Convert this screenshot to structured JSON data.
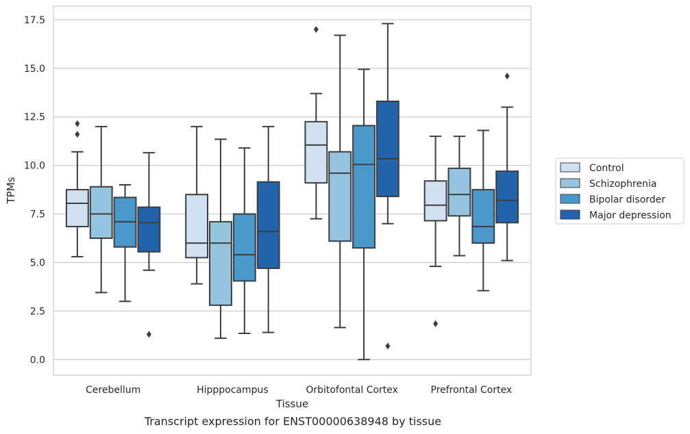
{
  "caption": "Transcript expression for ENST00000638948 by tissue",
  "chart_data": {
    "type": "box",
    "title": "",
    "xlabel": "Tissue",
    "ylabel": "TPMs",
    "ylim": [
      -0.8,
      18.2
    ],
    "yticks": [
      "0.0",
      "2.5",
      "5.0",
      "7.5",
      "10.0",
      "12.5",
      "15.0",
      "17.5"
    ],
    "grid": "horizontal",
    "legend_position": "right",
    "categories": [
      "Cerebellum",
      "Hipppocampus",
      "Orbitofontal Cortex",
      "Prefrontal Cortex"
    ],
    "series": [
      {
        "name": "Control",
        "color": "#d0e1f2",
        "boxes": [
          {
            "whisker_low": 5.3,
            "q1": 6.85,
            "median": 8.05,
            "q3": 8.75,
            "whisker_high": 10.7,
            "outliers": [
              12.15,
              11.6
            ]
          },
          {
            "whisker_low": 3.9,
            "q1": 5.25,
            "median": 6.0,
            "q3": 8.5,
            "whisker_high": 12.0,
            "outliers": []
          },
          {
            "whisker_low": 7.25,
            "q1": 9.1,
            "median": 11.05,
            "q3": 12.25,
            "whisker_high": 13.7,
            "outliers": [
              17.0
            ]
          },
          {
            "whisker_low": 4.8,
            "q1": 7.15,
            "median": 7.95,
            "q3": 9.2,
            "whisker_high": 11.5,
            "outliers": [
              1.85
            ]
          }
        ]
      },
      {
        "name": "Schizophrenia",
        "color": "#94c4df",
        "boxes": [
          {
            "whisker_low": 3.45,
            "q1": 6.25,
            "median": 7.5,
            "q3": 8.9,
            "whisker_high": 12.0,
            "outliers": []
          },
          {
            "whisker_low": 1.1,
            "q1": 2.8,
            "median": 6.0,
            "q3": 7.1,
            "whisker_high": 11.35,
            "outliers": []
          },
          {
            "whisker_low": 1.65,
            "q1": 6.1,
            "median": 9.6,
            "q3": 10.7,
            "whisker_high": 16.7,
            "outliers": []
          },
          {
            "whisker_low": 5.35,
            "q1": 7.4,
            "median": 8.5,
            "q3": 9.85,
            "whisker_high": 11.5,
            "outliers": []
          }
        ]
      },
      {
        "name": "Bipolar disorder",
        "color": "#4a98c9",
        "boxes": [
          {
            "whisker_low": 3.0,
            "q1": 5.8,
            "median": 7.1,
            "q3": 8.35,
            "whisker_high": 9.0,
            "outliers": []
          },
          {
            "whisker_low": 1.35,
            "q1": 4.05,
            "median": 5.4,
            "q3": 7.5,
            "whisker_high": 10.9,
            "outliers": []
          },
          {
            "whisker_low": 0.0,
            "q1": 5.75,
            "median": 10.05,
            "q3": 12.05,
            "whisker_high": 14.95,
            "outliers": []
          },
          {
            "whisker_low": 3.55,
            "q1": 6.0,
            "median": 6.85,
            "q3": 8.75,
            "whisker_high": 11.8,
            "outliers": []
          }
        ]
      },
      {
        "name": "Major depression",
        "color": "#2164ab",
        "boxes": [
          {
            "whisker_low": 4.6,
            "q1": 5.55,
            "median": 7.05,
            "q3": 7.85,
            "whisker_high": 10.65,
            "outliers": [
              1.3
            ]
          },
          {
            "whisker_low": 1.4,
            "q1": 4.7,
            "median": 6.6,
            "q3": 9.15,
            "whisker_high": 12.0,
            "outliers": []
          },
          {
            "whisker_low": 7.0,
            "q1": 8.4,
            "median": 10.35,
            "q3": 13.3,
            "whisker_high": 17.3,
            "outliers": [
              0.7
            ]
          },
          {
            "whisker_low": 5.1,
            "q1": 7.05,
            "median": 8.2,
            "q3": 9.7,
            "whisker_high": 13.0,
            "outliers": [
              14.6
            ]
          }
        ]
      }
    ]
  }
}
